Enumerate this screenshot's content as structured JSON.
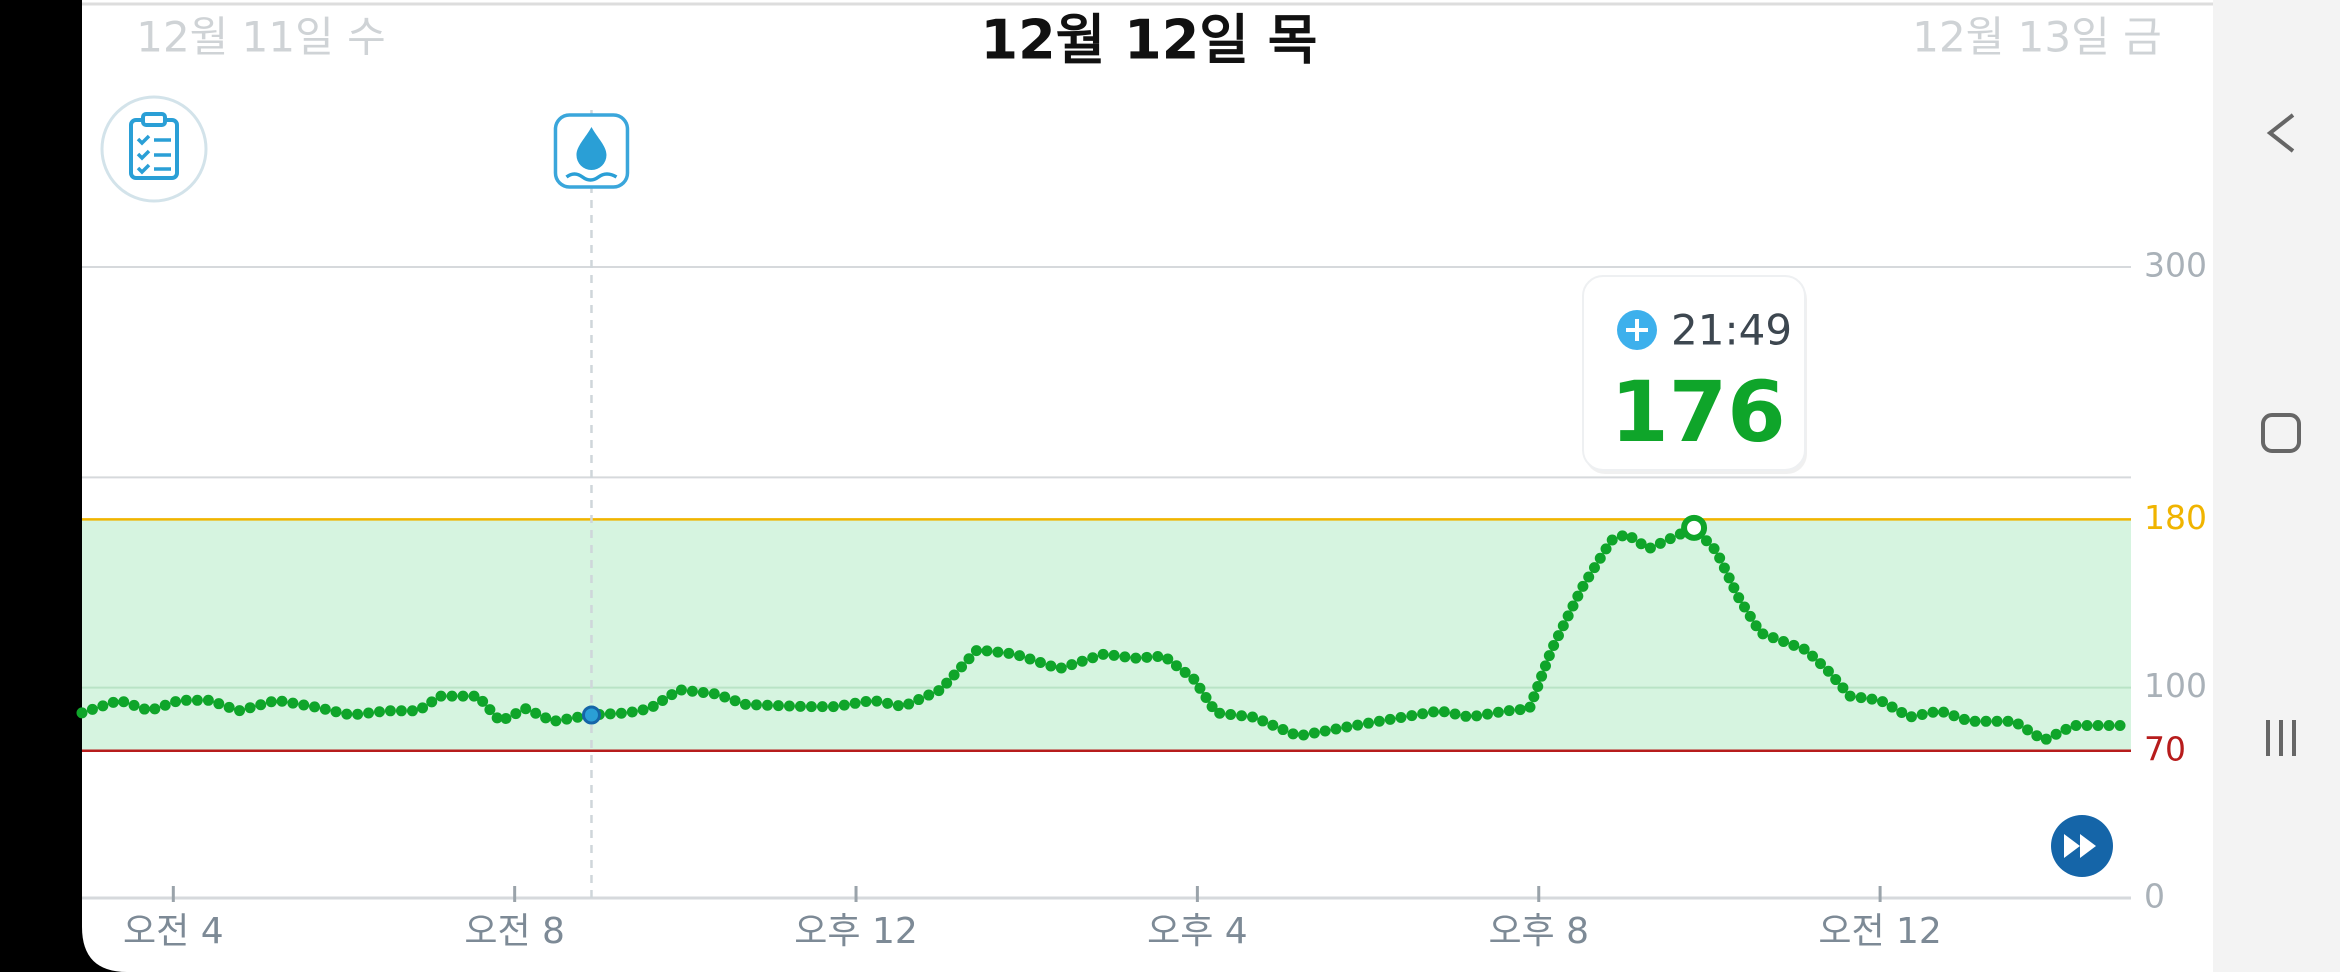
{
  "chart_data": {
    "type": "line",
    "title": "12월 12일 목",
    "prev_day": "12월 11일 수",
    "next_day": "12월 13일 금",
    "x": [
      2.93,
      3.37,
      3.72,
      4.07,
      4.42,
      4.77,
      5.21,
      5.64,
      6.08,
      6.52,
      6.87,
      7.13,
      7.57,
      7.83,
      8.13,
      8.45,
      8.9,
      9.32,
      9.58,
      9.93,
      10.36,
      10.71,
      11.41,
      11.76,
      12.2,
      12.55,
      12.99,
      13.42,
      13.86,
      14.38,
      14.91,
      15.26,
      15.61,
      15.96,
      16.22,
      16.66,
      17.18,
      17.71,
      18.41,
      18.84,
      19.19,
      19.63,
      19.89,
      20.15,
      20.5,
      20.85,
      21.03,
      21.29,
      21.55,
      21.82,
      22.08,
      22.34,
      22.6,
      23.13,
      23.39,
      23.65,
      24.0,
      24.35,
      24.7,
      25.05,
      25.57,
      25.92,
      26.27,
      26.94
    ],
    "values": [
      88,
      94,
      89,
      94,
      94,
      89,
      94,
      91,
      87,
      89,
      89,
      96,
      96,
      84,
      90,
      84,
      87,
      88,
      90,
      99,
      97,
      92,
      91,
      91,
      94,
      91,
      99,
      118,
      116,
      109,
      116,
      114,
      115,
      104,
      88,
      86,
      77,
      81,
      86,
      89,
      86,
      89,
      90,
      118,
      147,
      170,
      173,
      166,
      171,
      176,
      165,
      143,
      126,
      118,
      108,
      96,
      94,
      86,
      89,
      84,
      84,
      75,
      82,
      82
    ],
    "color": "#0fa52a",
    "xlim": [
      2.93,
      26.94
    ],
    "xticks": [
      {
        "value": 4,
        "label": "오전 4"
      },
      {
        "value": 8,
        "label": "오전 8"
      },
      {
        "value": 12,
        "label": "오후 12"
      },
      {
        "value": 16,
        "label": "오후 4"
      },
      {
        "value": 20,
        "label": "오후 8"
      },
      {
        "value": 24,
        "label": "오전 12"
      }
    ],
    "ylim": [
      0,
      300
    ],
    "yticks": [
      0,
      70,
      100,
      180,
      300
    ],
    "gridlines": [
      100,
      200,
      300
    ],
    "target_range": {
      "low": 70,
      "high": 180,
      "low_color": "#b71c1c",
      "high_color": "#f0b400",
      "fill": "#d6f4e0"
    },
    "event": {
      "x": 8.9,
      "value": 87
    },
    "annotation": {
      "x": 21.82,
      "time": "21:49",
      "value": 176
    }
  }
}
